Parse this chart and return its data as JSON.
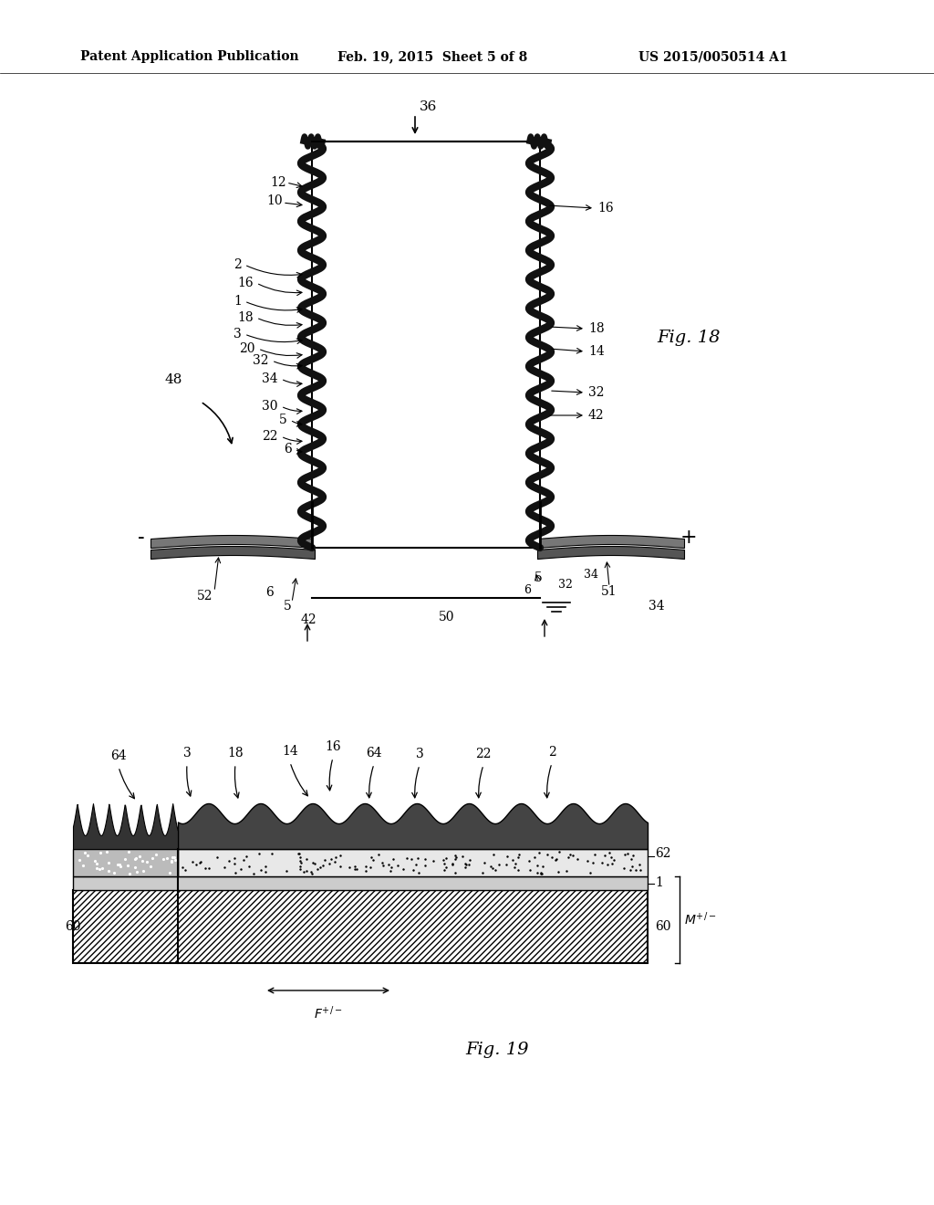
{
  "bg_color": "#ffffff",
  "header_left": "Patent Application Publication",
  "header_mid": "Feb. 19, 2015  Sheet 5 of 8",
  "header_right": "US 2015/0050514 A1",
  "fig18_label": "Fig. 18",
  "fig19_label": "Fig. 19",
  "fig_width": 10.24,
  "fig_height": 13.2,
  "dpi": 100
}
